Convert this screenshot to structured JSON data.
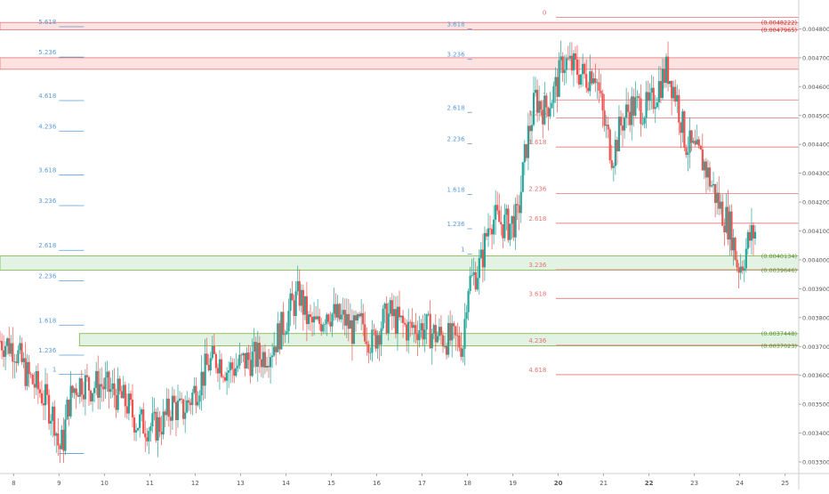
{
  "chart_data": {
    "type": "candlestick",
    "colors": {
      "up": "#26a69a",
      "down": "#ef5350",
      "fib_blue": "#5b9bd5",
      "fib_red": "#e57373",
      "zone_red_fill": "#fde2e2",
      "zone_green_fill": "#e3f3e3",
      "zone_red_border": "#e57373",
      "zone_green_border": "#7cb342",
      "label_red_text": "#c62828",
      "label_green_text": "#558b2f",
      "axis_text": "#555555"
    },
    "x_axis": {
      "ticks": [
        "8",
        "9",
        "10",
        "11",
        "12",
        "13",
        "14",
        "15",
        "16",
        "17",
        "18",
        "19",
        "20",
        "21",
        "22",
        "23",
        "24",
        "25"
      ],
      "bold_ticks": [
        "20",
        "22"
      ],
      "range": [
        7.7,
        25.3
      ]
    },
    "y_axis": {
      "ticks": [
        "0.0048000",
        "0.0047000",
        "0.0046000",
        "0.0045000",
        "0.0044000",
        "0.0043000",
        "0.0042000",
        "0.0041000",
        "0.0040000",
        "0.0039000",
        "0.0038000",
        "0.0037000",
        "0.0036000",
        "0.0035000",
        "0.0034000",
        "0.0033000"
      ],
      "range": [
        0.00326,
        0.0049
      ]
    },
    "zones": [
      {
        "name": "top-red",
        "color": "red",
        "from": 0.0047965,
        "to": 0.0048222,
        "x_start": 7.7
      },
      {
        "name": "upper-red",
        "color": "red",
        "from": 0.00466,
        "to": 0.0047,
        "x_start": 7.7
      },
      {
        "name": "upper-green",
        "color": "green",
        "from": 0.0039646,
        "to": 0.0040134,
        "x_start": 7.7
      },
      {
        "name": "lower-green",
        "color": "green",
        "from": 0.0037023,
        "to": 0.0037448,
        "x_start": 9.45
      }
    ],
    "price_labels": [
      {
        "text": "(0.0048222)",
        "value": 0.0048222,
        "color": "red"
      },
      {
        "text": "(0.0047965)",
        "value": 0.0047965,
        "color": "red"
      },
      {
        "text": "(0.0040134)",
        "value": 0.0040134,
        "color": "green"
      },
      {
        "text": "(0.0039646)",
        "value": 0.0039646,
        "color": "green"
      },
      {
        "text": "(0.0037448)",
        "value": 0.0037448,
        "color": "green"
      },
      {
        "text": "(0.0037023)",
        "value": 0.0037023,
        "color": "green"
      }
    ],
    "fib_sets": [
      {
        "name": "fib-left",
        "color": "blue",
        "x_label": 9.0,
        "x_start": 9.0,
        "x_end": 9.55,
        "levels": [
          {
            "label": "5.618",
            "value": 0.0048076
          },
          {
            "label": "5.236",
            "value": 0.0047024
          },
          {
            "label": "4.618",
            "value": 0.0045516
          },
          {
            "label": "4.236",
            "value": 0.004446
          },
          {
            "label": "3.618",
            "value": 0.0042936
          },
          {
            "label": "3.236",
            "value": 0.004188
          },
          {
            "label": "2.618",
            "value": 0.004033
          },
          {
            "label": "2.236",
            "value": 0.0039275
          },
          {
            "label": "1.618",
            "value": 0.003774
          },
          {
            "label": "1.236",
            "value": 0.00367
          },
          {
            "label": "1",
            "value": 0.003604
          },
          {
            "label": "",
            "value": 0.0033296
          }
        ]
      },
      {
        "name": "fib-mid",
        "color": "blue",
        "x_label": 18.0,
        "x_start": 18.0,
        "x_end": 18.1,
        "levels": [
          {
            "label": "3.618",
            "value": 0.0048
          },
          {
            "label": "3.236",
            "value": 0.0046944
          },
          {
            "label": "2.618",
            "value": 0.0045108
          },
          {
            "label": "2.236",
            "value": 0.0044016
          },
          {
            "label": "1.618",
            "value": 0.0042264
          },
          {
            "label": "1.236",
            "value": 0.0041076
          },
          {
            "label": "1",
            "value": 0.00402
          }
        ]
      },
      {
        "name": "fib-right",
        "color": "red",
        "x_label": 19.8,
        "x_start": 19.95,
        "x_end": 25.3,
        "levels": [
          {
            "label": "0",
            "value": 0.00484
          },
          {
            "label": "1",
            "value": 0.004554
          },
          {
            "label": "1.236",
            "value": 0.0044916
          },
          {
            "label": "1.618",
            "value": 0.0043908
          },
          {
            "label": "2.236",
            "value": 0.00423
          },
          {
            "label": "2.618",
            "value": 0.0041268
          },
          {
            "label": "3.236",
            "value": 0.003966
          },
          {
            "label": "3.618",
            "value": 0.0038664
          },
          {
            "label": "4.236",
            "value": 0.0037044
          },
          {
            "label": "4.618",
            "value": 0.0036024
          }
        ]
      }
    ],
    "price_path": [
      [
        7.7,
        0.00372
      ],
      [
        8.0,
        0.0037
      ],
      [
        8.15,
        0.00365
      ],
      [
        8.3,
        0.0036
      ],
      [
        8.45,
        0.00357
      ],
      [
        8.6,
        0.00354
      ],
      [
        8.75,
        0.0035
      ],
      [
        8.9,
        0.00345
      ],
      [
        9.0,
        0.00334
      ],
      [
        9.1,
        0.00338
      ],
      [
        9.2,
        0.0035
      ],
      [
        9.35,
        0.00356
      ],
      [
        9.5,
        0.00358
      ],
      [
        9.7,
        0.00356
      ],
      [
        9.9,
        0.00357
      ],
      [
        10.1,
        0.00355
      ],
      [
        10.3,
        0.00353
      ],
      [
        10.5,
        0.0035
      ],
      [
        10.7,
        0.00344
      ],
      [
        10.9,
        0.00343
      ],
      [
        11.1,
        0.00342
      ],
      [
        11.3,
        0.00344
      ],
      [
        11.5,
        0.0035
      ],
      [
        11.7,
        0.00347
      ],
      [
        11.9,
        0.00352
      ],
      [
        12.1,
        0.00358
      ],
      [
        12.3,
        0.00364
      ],
      [
        12.5,
        0.00366
      ],
      [
        12.7,
        0.00362
      ],
      [
        12.9,
        0.00363
      ],
      [
        13.1,
        0.00365
      ],
      [
        13.3,
        0.00366
      ],
      [
        13.5,
        0.00367
      ],
      [
        13.7,
        0.0037
      ],
      [
        13.9,
        0.00376
      ],
      [
        14.1,
        0.00383
      ],
      [
        14.3,
        0.00388
      ],
      [
        14.5,
        0.00378
      ],
      [
        14.7,
        0.00377
      ],
      [
        14.9,
        0.00383
      ],
      [
        15.1,
        0.0038
      ],
      [
        15.3,
        0.00379
      ],
      [
        15.5,
        0.00375
      ],
      [
        15.7,
        0.00378
      ],
      [
        15.9,
        0.00371
      ],
      [
        16.1,
        0.00378
      ],
      [
        16.3,
        0.00381
      ],
      [
        16.5,
        0.00378
      ],
      [
        16.7,
        0.00376
      ],
      [
        16.9,
        0.00377
      ],
      [
        17.1,
        0.00376
      ],
      [
        17.3,
        0.00374
      ],
      [
        17.5,
        0.00373
      ],
      [
        17.7,
        0.00372
      ],
      [
        17.9,
        0.00371
      ],
      [
        18.0,
        0.00392
      ],
      [
        18.1,
        0.00393
      ],
      [
        18.3,
        0.00399
      ],
      [
        18.5,
        0.00415
      ],
      [
        18.7,
        0.00413
      ],
      [
        18.9,
        0.00412
      ],
      [
        19.1,
        0.00414
      ],
      [
        19.3,
        0.0044
      ],
      [
        19.5,
        0.00456
      ],
      [
        19.7,
        0.00452
      ],
      [
        19.9,
        0.00458
      ],
      [
        20.0,
        0.00462
      ],
      [
        20.1,
        0.00469
      ],
      [
        20.2,
        0.00468
      ],
      [
        20.4,
        0.00466
      ],
      [
        20.6,
        0.00463
      ],
      [
        20.8,
        0.00467
      ],
      [
        21.0,
        0.00448
      ],
      [
        21.2,
        0.00436
      ],
      [
        21.4,
        0.00448
      ],
      [
        21.6,
        0.00453
      ],
      [
        21.8,
        0.00453
      ],
      [
        22.0,
        0.00452
      ],
      [
        22.2,
        0.0046
      ],
      [
        22.4,
        0.00466
      ],
      [
        22.6,
        0.00457
      ],
      [
        22.8,
        0.00441
      ],
      [
        23.0,
        0.00437
      ],
      [
        23.2,
        0.00434
      ],
      [
        23.4,
        0.00425
      ],
      [
        23.6,
        0.00417
      ],
      [
        23.8,
        0.00411
      ],
      [
        23.95,
        0.00398
      ],
      [
        24.05,
        0.00399
      ],
      [
        24.2,
        0.00407
      ],
      [
        24.35,
        0.0041
      ]
    ]
  }
}
